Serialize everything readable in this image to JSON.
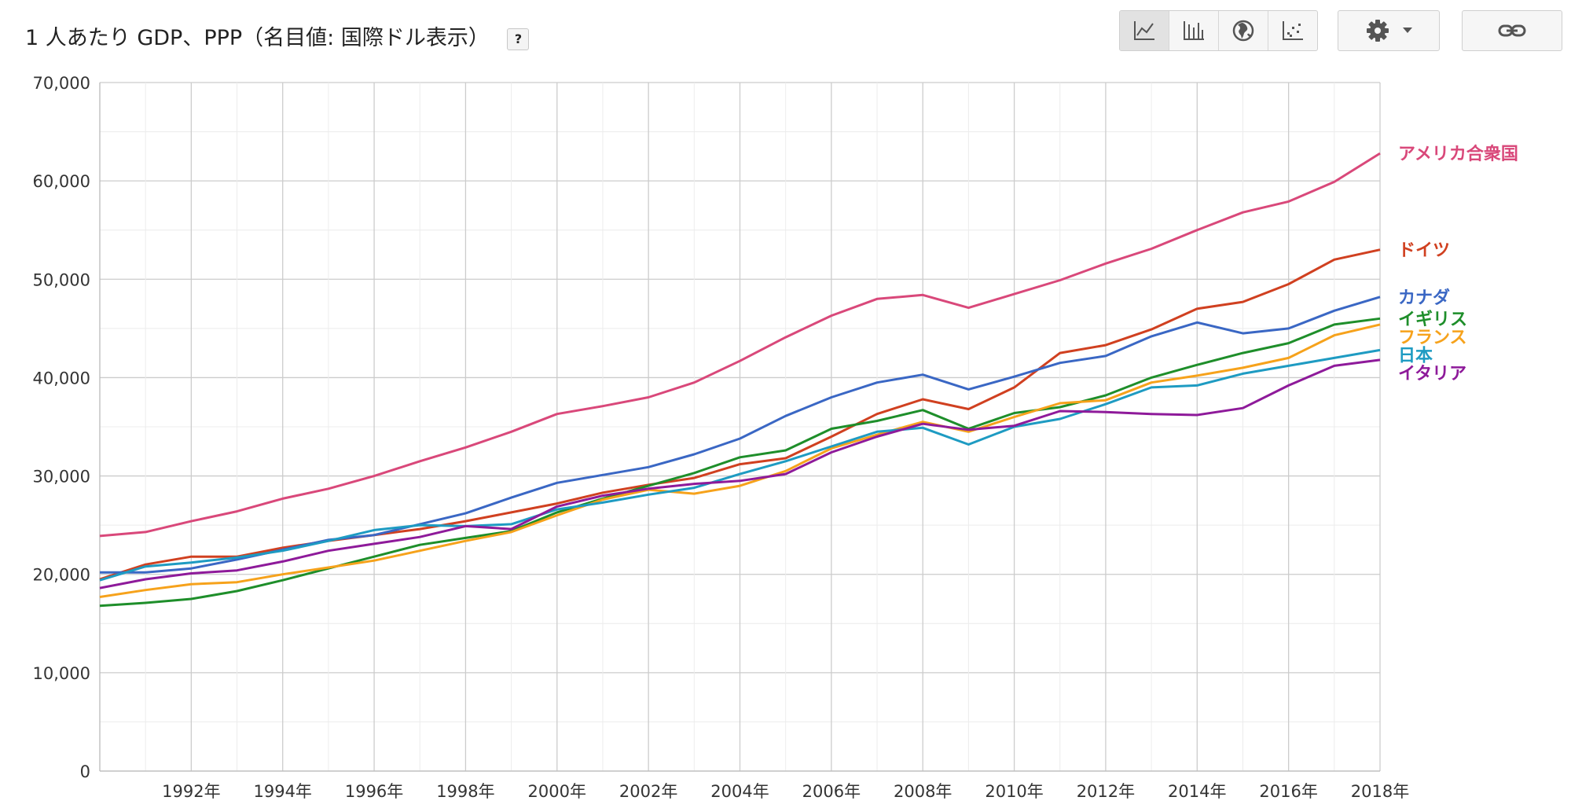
{
  "header": {
    "title": "1 人あたり GDP、PPP（名目値: 国際ドル表示）",
    "help_label": "?"
  },
  "toolbar": {
    "chart_types": [
      {
        "icon": "line-chart-icon",
        "active": true
      },
      {
        "icon": "bar-chart-icon",
        "active": false
      },
      {
        "icon": "globe-icon",
        "active": false
      },
      {
        "icon": "scatter-chart-icon",
        "active": false
      }
    ],
    "settings_icon": "gear-icon",
    "dropdown_icon": "caret-down-icon",
    "link_icon": "link-icon"
  },
  "chart_data": {
    "type": "line",
    "x": [
      1990,
      1991,
      1992,
      1993,
      1994,
      1995,
      1996,
      1997,
      1998,
      1999,
      2000,
      2001,
      2002,
      2003,
      2004,
      2005,
      2006,
      2007,
      2008,
      2009,
      2010,
      2011,
      2012,
      2013,
      2014,
      2015,
      2016,
      2017,
      2018
    ],
    "x_tick_labels": [
      "1992年",
      "1994年",
      "1996年",
      "1998年",
      "2000年",
      "2002年",
      "2004年",
      "2006年",
      "2008年",
      "2010年",
      "2012年",
      "2014年",
      "2016年",
      "2018年"
    ],
    "x_tick_values": [
      1992,
      1994,
      1996,
      1998,
      2000,
      2002,
      2004,
      2006,
      2008,
      2010,
      2012,
      2014,
      2016,
      2018
    ],
    "xlim": [
      1990,
      2018
    ],
    "ylim": [
      0,
      70000
    ],
    "y_ticks": [
      0,
      10000,
      20000,
      30000,
      40000,
      50000,
      60000,
      70000
    ],
    "y_tick_labels": [
      "0",
      "10,000",
      "20,000",
      "30,000",
      "40,000",
      "50,000",
      "60,000",
      "70,000"
    ],
    "grid": true,
    "legend": "right-end labels",
    "series": [
      {
        "name": "アメリカ合衆国",
        "color": "#d9487a",
        "values": [
          23900,
          24300,
          25400,
          26400,
          27700,
          28700,
          30000,
          31500,
          32900,
          34500,
          36300,
          37100,
          38000,
          39500,
          41700,
          44100,
          46300,
          48000,
          48400,
          47100,
          48500,
          49900,
          51600,
          53100,
          55000,
          56800,
          57900,
          59900,
          62800
        ]
      },
      {
        "name": "ドイツ",
        "color": "#d04020",
        "values": [
          19500,
          21000,
          21800,
          21800,
          22700,
          23400,
          24000,
          24600,
          25400,
          26300,
          27200,
          28300,
          29100,
          29800,
          31200,
          31800,
          34000,
          36300,
          37800,
          36800,
          39000,
          42500,
          43300,
          44900,
          47000,
          47700,
          49500,
          52000,
          53000
        ]
      },
      {
        "name": "カナダ",
        "color": "#3a67c4",
        "values": [
          20200,
          20200,
          20600,
          21500,
          22500,
          23500,
          24000,
          25100,
          26200,
          27800,
          29300,
          30100,
          30900,
          32200,
          33800,
          36100,
          38000,
          39500,
          40300,
          38800,
          40100,
          41500,
          42200,
          44200,
          45600,
          44500,
          45000,
          46800,
          48200
        ]
      },
      {
        "name": "イギリス",
        "color": "#1e8e2a",
        "values": [
          16800,
          17100,
          17500,
          18300,
          19400,
          20600,
          21800,
          23000,
          23700,
          24400,
          26300,
          27700,
          29000,
          30300,
          31900,
          32600,
          34800,
          35600,
          36700,
          34800,
          36400,
          37000,
          38200,
          40000,
          41300,
          42500,
          43500,
          45400,
          46000
        ]
      },
      {
        "name": "フランス",
        "color": "#f6a21b",
        "values": [
          17700,
          18400,
          19000,
          19200,
          20000,
          20700,
          21400,
          22400,
          23400,
          24300,
          26000,
          27600,
          28600,
          28200,
          29000,
          30500,
          32800,
          34200,
          35500,
          34500,
          36000,
          37400,
          37700,
          39500,
          40200,
          41000,
          42000,
          44300,
          45400
        ]
      },
      {
        "name": "日本",
        "color": "#1e9bc2",
        "values": [
          19400,
          20800,
          21200,
          21700,
          22400,
          23400,
          24500,
          25000,
          24900,
          25100,
          26600,
          27300,
          28100,
          28800,
          30200,
          31500,
          33000,
          34500,
          34900,
          33200,
          35000,
          35800,
          37300,
          39000,
          39200,
          40400,
          41200,
          42000,
          42800
        ]
      },
      {
        "name": "イタリア",
        "color": "#8e1a9a",
        "values": [
          18600,
          19500,
          20100,
          20400,
          21300,
          22400,
          23100,
          23800,
          24900,
          24600,
          26900,
          28000,
          28700,
          29200,
          29500,
          30200,
          32400,
          34000,
          35300,
          34700,
          35100,
          36600,
          36500,
          36300,
          36200,
          36900,
          39200,
          41200,
          41800
        ]
      }
    ]
  }
}
